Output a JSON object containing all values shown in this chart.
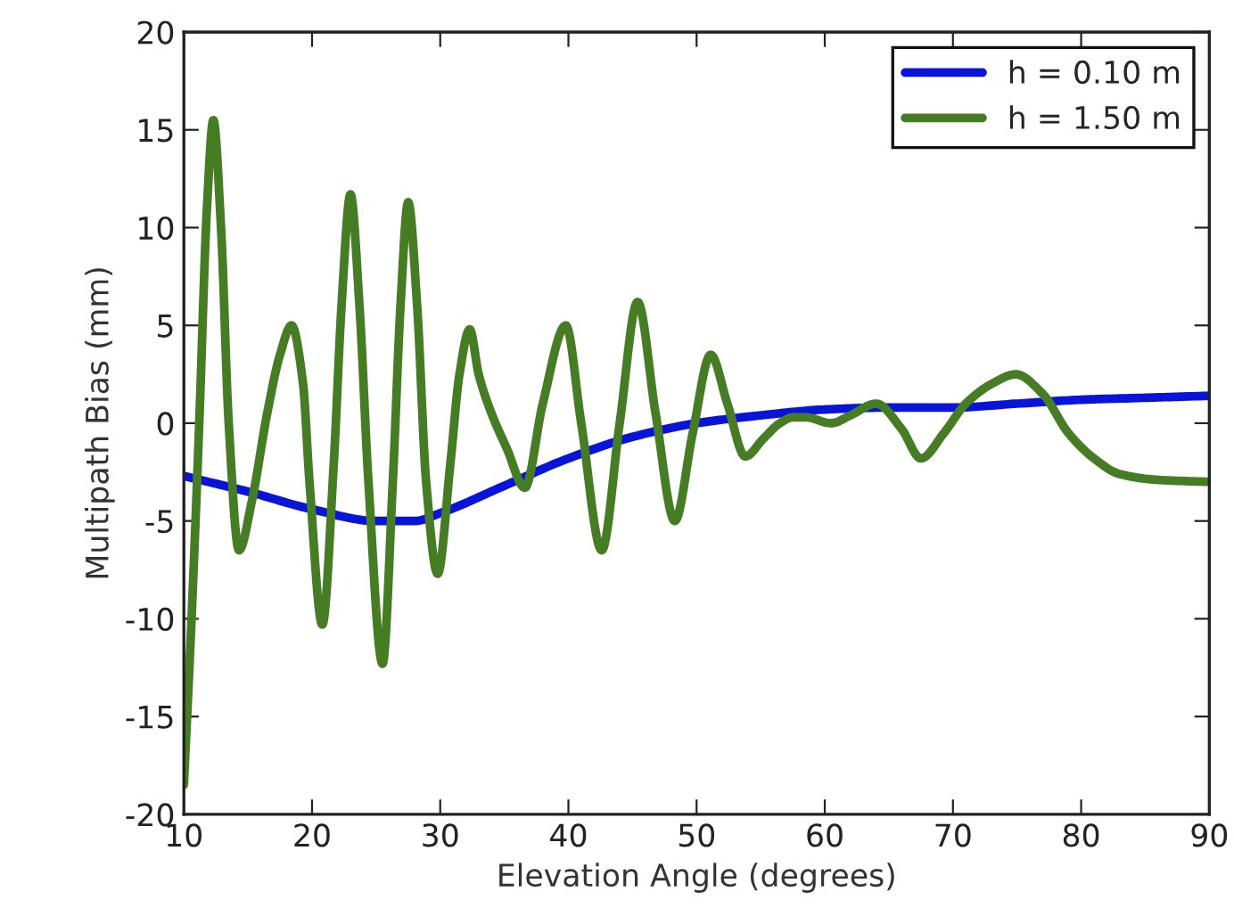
{
  "chart_data": {
    "type": "line",
    "xlabel": "Elevation Angle (degrees)",
    "ylabel": "Multipath Bias (mm)",
    "xlim": [
      10,
      90
    ],
    "xticks": [
      10,
      20,
      30,
      40,
      50,
      60,
      70,
      80,
      90
    ],
    "ylim": [
      -20,
      20
    ],
    "yticks": [
      -20,
      -15,
      -10,
      -5,
      0,
      5,
      10,
      15,
      20
    ],
    "grid": false,
    "legend": "top right",
    "marker": "none",
    "line_style": "solid",
    "series": [
      {
        "name": "h = 0.10 m",
        "color": "#0a14d8",
        "x": [
          10,
          15,
          20,
          25,
          28,
          30,
          35,
          40,
          45,
          50,
          55,
          60,
          65,
          70,
          75,
          80,
          85,
          90
        ],
        "values": [
          -2.7,
          -3.5,
          -4.4,
          -5,
          -5,
          -4.6,
          -3.2,
          -1.8,
          -0.7,
          0,
          0.4,
          0.7,
          0.8,
          0.8,
          1,
          1.2,
          1.3,
          1.4
        ]
      },
      {
        "name": "h = 1.50 m",
        "color": "#467c24",
        "x": [
          10,
          10.6,
          11.2,
          11.8,
          12.3,
          12.9,
          13.5,
          14.3,
          15.3,
          16.5,
          17.5,
          18.4,
          19.3,
          19.8,
          20.8,
          21.7,
          22.3,
          23,
          23.7,
          24.4,
          25.5,
          26.3,
          26.9,
          27.5,
          28.2,
          28.9,
          29.8,
          30.8,
          31.5,
          32.3,
          33,
          34,
          35.2,
          36.6,
          38,
          39.8,
          41,
          42.6,
          44,
          45.4,
          46.8,
          48.3,
          49.7,
          51.1,
          52.4,
          53.8,
          55.2,
          56.5,
          57.5,
          58.5,
          60.5,
          62,
          64,
          66,
          67.5,
          69.3,
          71,
          73,
          74.9,
          77,
          79,
          81,
          83,
          86,
          90
        ],
        "values": [
          -18.5,
          -10,
          0,
          11,
          15.5,
          10,
          0,
          -6.5,
          -4,
          0.5,
          3.5,
          5,
          2,
          -3,
          -10.3,
          -2,
          6,
          11.7,
          6,
          -3,
          -12.3,
          -3,
          6,
          11.3,
          6,
          -3,
          -7.7,
          -2,
          2.5,
          4.8,
          2.5,
          0.5,
          -1.3,
          -3.3,
          1,
          5,
          0,
          -6.5,
          0,
          6.2,
          0.5,
          -5,
          -0.5,
          3.5,
          1,
          -1.7,
          -0.8,
          0,
          0.3,
          0.3,
          0,
          0.4,
          1,
          -0.3,
          -1.8,
          -0.5,
          1,
          2,
          2.5,
          1.5,
          -0.5,
          -1.8,
          -2.6,
          -2.9,
          -3
        ]
      }
    ]
  }
}
